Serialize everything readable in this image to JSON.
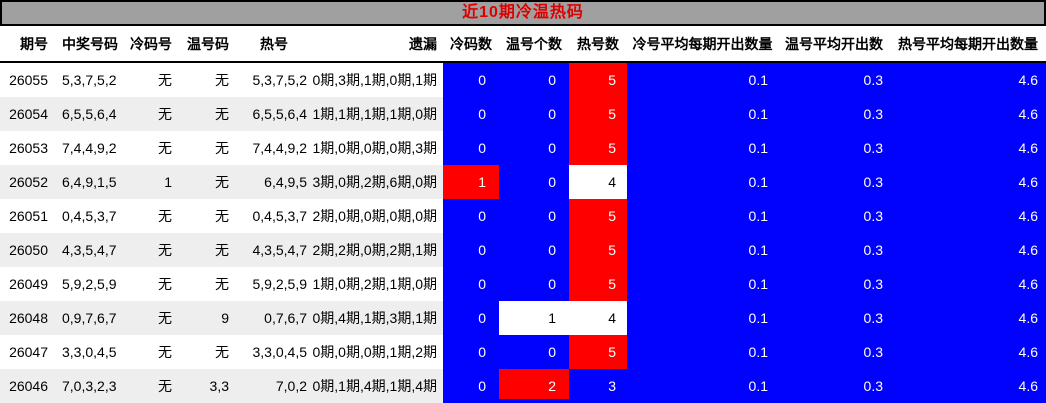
{
  "title": "近10期冷温热码",
  "colors": {
    "blue": "#0101fe",
    "red": "#ff0000",
    "white": "#ffffff",
    "title_bg": "#a0a0a0",
    "title_text": "#dd0000"
  },
  "columns": [
    {
      "key": "period",
      "label": "期号"
    },
    {
      "key": "winning_numbers",
      "label": "中奖号码"
    },
    {
      "key": "cold_number",
      "label": "冷码号"
    },
    {
      "key": "warm_number",
      "label": "温号码"
    },
    {
      "key": "hot_numbers",
      "label": "热号"
    },
    {
      "key": "omission",
      "label": "遗漏"
    },
    {
      "key": "cold_count",
      "label": "冷码数"
    },
    {
      "key": "warm_count",
      "label": "温号个数"
    },
    {
      "key": "hot_count",
      "label": "热号数"
    },
    {
      "key": "cold_avg",
      "label": "冷号平均每期开出数量"
    },
    {
      "key": "warm_avg",
      "label": "温号平均开出数"
    },
    {
      "key": "hot_avg",
      "label": "热号平均每期开出数量"
    }
  ],
  "rows": [
    {
      "period": "26055",
      "winning_numbers": "5,3,7,5,2",
      "cold_number": "无",
      "warm_number": "无",
      "hot_numbers": "5,3,7,5,2",
      "omission": "0期,3期,1期,0期,1期",
      "cold_count": "0",
      "cold_count_color": "blue",
      "warm_count": "0",
      "warm_count_color": "blue",
      "hot_count": "5",
      "hot_count_color": "red",
      "cold_avg": "0.1",
      "warm_avg": "0.3",
      "hot_avg": "4.6"
    },
    {
      "period": "26054",
      "winning_numbers": "6,5,5,6,4",
      "cold_number": "无",
      "warm_number": "无",
      "hot_numbers": "6,5,5,6,4",
      "omission": "1期,1期,1期,1期,0期",
      "cold_count": "0",
      "cold_count_color": "blue",
      "warm_count": "0",
      "warm_count_color": "blue",
      "hot_count": "5",
      "hot_count_color": "red",
      "cold_avg": "0.1",
      "warm_avg": "0.3",
      "hot_avg": "4.6"
    },
    {
      "period": "26053",
      "winning_numbers": "7,4,4,9,2",
      "cold_number": "无",
      "warm_number": "无",
      "hot_numbers": "7,4,4,9,2",
      "omission": "1期,0期,0期,0期,3期",
      "cold_count": "0",
      "cold_count_color": "blue",
      "warm_count": "0",
      "warm_count_color": "blue",
      "hot_count": "5",
      "hot_count_color": "red",
      "cold_avg": "0.1",
      "warm_avg": "0.3",
      "hot_avg": "4.6"
    },
    {
      "period": "26052",
      "winning_numbers": "6,4,9,1,5",
      "cold_number": "1",
      "warm_number": "无",
      "hot_numbers": "6,4,9,5",
      "omission": "3期,0期,2期,6期,0期",
      "cold_count": "1",
      "cold_count_color": "red",
      "warm_count": "0",
      "warm_count_color": "blue",
      "hot_count": "4",
      "hot_count_color": "white",
      "cold_avg": "0.1",
      "warm_avg": "0.3",
      "hot_avg": "4.6"
    },
    {
      "period": "26051",
      "winning_numbers": "0,4,5,3,7",
      "cold_number": "无",
      "warm_number": "无",
      "hot_numbers": "0,4,5,3,7",
      "omission": "2期,0期,0期,0期,0期",
      "cold_count": "0",
      "cold_count_color": "blue",
      "warm_count": "0",
      "warm_count_color": "blue",
      "hot_count": "5",
      "hot_count_color": "red",
      "cold_avg": "0.1",
      "warm_avg": "0.3",
      "hot_avg": "4.6"
    },
    {
      "period": "26050",
      "winning_numbers": "4,3,5,4,7",
      "cold_number": "无",
      "warm_number": "无",
      "hot_numbers": "4,3,5,4,7",
      "omission": "2期,2期,0期,2期,1期",
      "cold_count": "0",
      "cold_count_color": "blue",
      "warm_count": "0",
      "warm_count_color": "blue",
      "hot_count": "5",
      "hot_count_color": "red",
      "cold_avg": "0.1",
      "warm_avg": "0.3",
      "hot_avg": "4.6"
    },
    {
      "period": "26049",
      "winning_numbers": "5,9,2,5,9",
      "cold_number": "无",
      "warm_number": "无",
      "hot_numbers": "5,9,2,5,9",
      "omission": "1期,0期,2期,1期,0期",
      "cold_count": "0",
      "cold_count_color": "blue",
      "warm_count": "0",
      "warm_count_color": "blue",
      "hot_count": "5",
      "hot_count_color": "red",
      "cold_avg": "0.1",
      "warm_avg": "0.3",
      "hot_avg": "4.6"
    },
    {
      "period": "26048",
      "winning_numbers": "0,9,7,6,7",
      "cold_number": "无",
      "warm_number": "9",
      "hot_numbers": "0,7,6,7",
      "omission": "0期,4期,1期,3期,1期",
      "cold_count": "0",
      "cold_count_color": "blue",
      "warm_count": "1",
      "warm_count_color": "white",
      "hot_count": "4",
      "hot_count_color": "white",
      "cold_avg": "0.1",
      "warm_avg": "0.3",
      "hot_avg": "4.6"
    },
    {
      "period": "26047",
      "winning_numbers": "3,3,0,4,5",
      "cold_number": "无",
      "warm_number": "无",
      "hot_numbers": "3,3,0,4,5",
      "omission": "0期,0期,0期,1期,2期",
      "cold_count": "0",
      "cold_count_color": "blue",
      "warm_count": "0",
      "warm_count_color": "blue",
      "hot_count": "5",
      "hot_count_color": "red",
      "cold_avg": "0.1",
      "warm_avg": "0.3",
      "hot_avg": "4.6"
    },
    {
      "period": "26046",
      "winning_numbers": "7,0,3,2,3",
      "cold_number": "无",
      "warm_number": "3,3",
      "hot_numbers": "7,0,2",
      "omission": "0期,1期,4期,1期,4期",
      "cold_count": "0",
      "cold_count_color": "blue",
      "warm_count": "2",
      "warm_count_color": "red",
      "hot_count": "3",
      "hot_count_color": "blue",
      "cold_avg": "0.1",
      "warm_avg": "0.3",
      "hot_avg": "4.6"
    }
  ]
}
